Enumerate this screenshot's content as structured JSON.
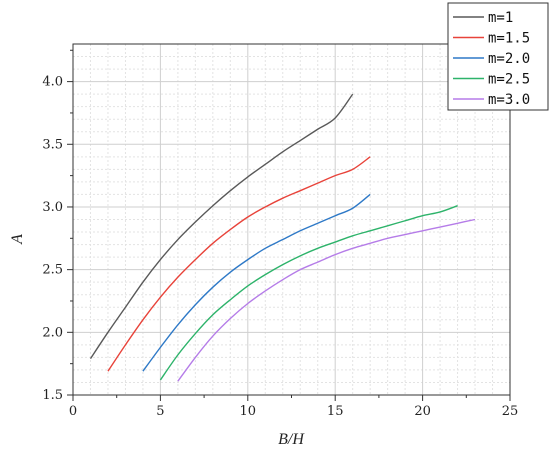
{
  "chart_data": {
    "type": "line",
    "title": "",
    "xlabel": "B/H",
    "ylabel": "A",
    "xlim": [
      0,
      25
    ],
    "ylim": [
      1.5,
      4.3
    ],
    "xticks": [
      0,
      5,
      10,
      15,
      20,
      25
    ],
    "yticks": [
      1.5,
      2.0,
      2.5,
      3.0,
      3.5,
      4.0
    ],
    "xtick_labels": [
      "0",
      "5",
      "10",
      "15",
      "20",
      "25"
    ],
    "ytick_labels": [
      "1.5",
      "2.0",
      "2.5",
      "3.0",
      "3.5",
      "4.0"
    ],
    "grid": true,
    "legend_position": "top-right",
    "series": [
      {
        "name": "m=1",
        "color": "#595959",
        "x": [
          1,
          2,
          3,
          4,
          5,
          6,
          7,
          8,
          9,
          10,
          11,
          12,
          13,
          14,
          15,
          16
        ],
        "y": [
          1.79,
          2.0,
          2.2,
          2.4,
          2.58,
          2.74,
          2.88,
          3.01,
          3.13,
          3.24,
          3.34,
          3.44,
          3.53,
          3.62,
          3.71,
          3.9
        ]
      },
      {
        "name": "m=1.5",
        "color": "#e8433a",
        "x": [
          2,
          3,
          4,
          5,
          6,
          7,
          8,
          9,
          10,
          11,
          12,
          13,
          14,
          15,
          16,
          17
        ],
        "y": [
          1.69,
          1.9,
          2.1,
          2.28,
          2.44,
          2.58,
          2.71,
          2.82,
          2.92,
          3.0,
          3.07,
          3.13,
          3.19,
          3.25,
          3.3,
          3.4
        ]
      },
      {
        "name": "m=2.0",
        "color": "#2e79c7",
        "x": [
          4,
          5,
          6,
          7,
          8,
          9,
          10,
          11,
          12,
          13,
          14,
          15,
          16,
          17
        ],
        "y": [
          1.69,
          1.88,
          2.06,
          2.22,
          2.36,
          2.48,
          2.58,
          2.67,
          2.74,
          2.81,
          2.87,
          2.93,
          2.99,
          3.1
        ]
      },
      {
        "name": "m=2.5",
        "color": "#2db36a",
        "x": [
          5,
          6,
          7,
          8,
          9,
          10,
          11,
          12,
          13,
          14,
          15,
          16,
          17,
          18,
          19,
          20,
          21,
          22
        ],
        "y": [
          1.62,
          1.82,
          1.99,
          2.14,
          2.26,
          2.37,
          2.46,
          2.54,
          2.61,
          2.67,
          2.72,
          2.77,
          2.81,
          2.85,
          2.89,
          2.93,
          2.96,
          3.01
        ]
      },
      {
        "name": "m=3.0",
        "color": "#b57ce8",
        "x": [
          6,
          7,
          8,
          9,
          10,
          11,
          12,
          13,
          14,
          15,
          16,
          17,
          18,
          19,
          20,
          21,
          22,
          23
        ],
        "y": [
          1.61,
          1.8,
          1.97,
          2.11,
          2.23,
          2.33,
          2.42,
          2.5,
          2.56,
          2.62,
          2.67,
          2.71,
          2.75,
          2.78,
          2.81,
          2.84,
          2.87,
          2.9
        ]
      }
    ]
  }
}
